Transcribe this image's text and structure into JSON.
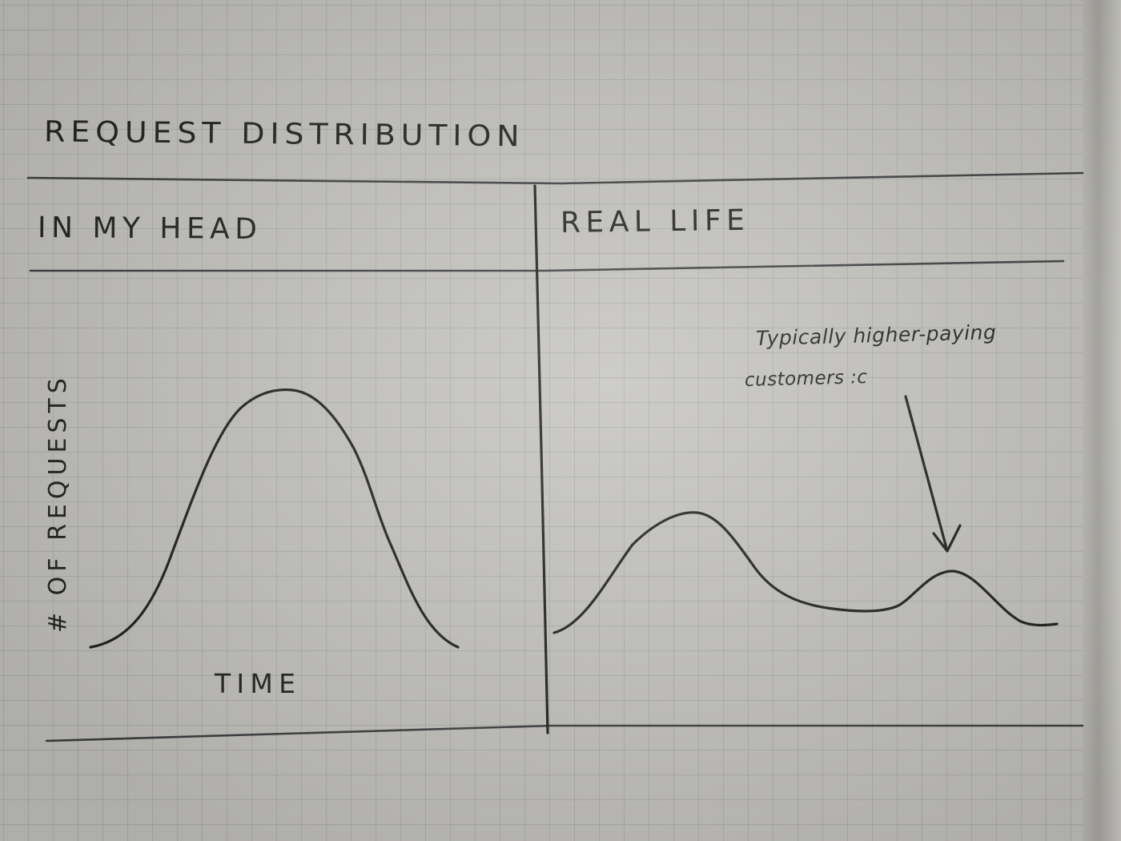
{
  "title": "REQUEST DISTRIBUTION",
  "panels": {
    "left": {
      "heading": "IN MY HEAD",
      "xlabel": "TIME",
      "ylabel": "# OF REQUESTS"
    },
    "right": {
      "heading": "REAL LIFE",
      "annotation": {
        "line1": "Typically higher-paying",
        "line2": "customers :c"
      }
    }
  },
  "colors": {
    "ink": "#1c1c1c",
    "paper": "#dddcd7",
    "grid": "#7e8388"
  }
}
